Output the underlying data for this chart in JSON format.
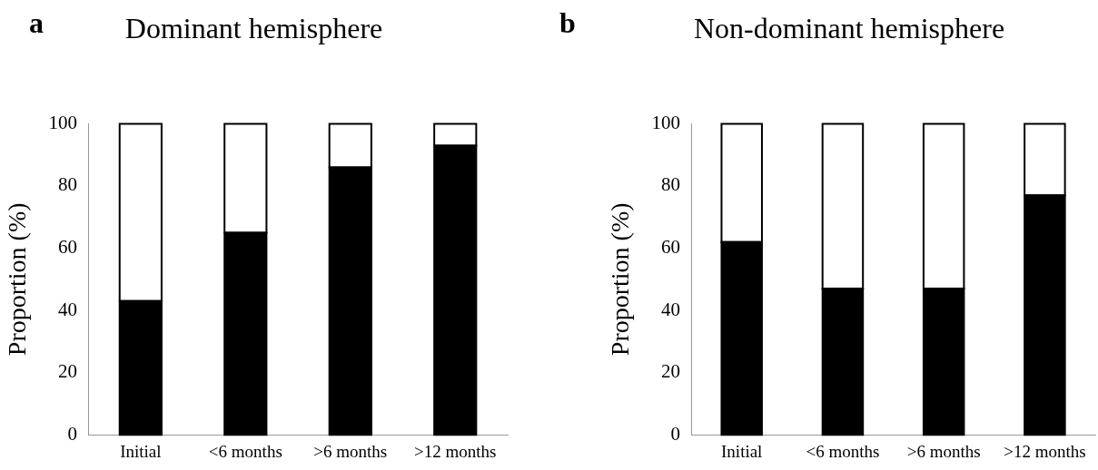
{
  "chart_data": [
    {
      "type": "bar",
      "title": "Dominant hemisphere",
      "annotations": [
        "a"
      ],
      "ylabel": "Proportion (%)",
      "categories": [
        "Initial",
        "<6 months",
        ">6 months",
        ">12 months"
      ],
      "stacked": true,
      "ylim": [
        0,
        100
      ],
      "yticks": [
        0,
        20,
        40,
        60,
        80,
        100
      ],
      "grid": false,
      "legend": false,
      "series": [
        {
          "color": "#000000",
          "values": [
            43,
            65,
            86,
            93
          ]
        },
        {
          "color": "#ffffff",
          "values": [
            57,
            35,
            14,
            7
          ]
        }
      ]
    },
    {
      "type": "bar",
      "title": "Non-dominant hemisphere",
      "annotations": [
        "b"
      ],
      "ylabel": "Proportion (%)",
      "categories": [
        "Initial",
        "<6 months",
        ">6 months",
        ">12 months"
      ],
      "stacked": true,
      "ylim": [
        0,
        100
      ],
      "yticks": [
        0,
        20,
        40,
        60,
        80,
        100
      ],
      "grid": false,
      "legend": false,
      "series": [
        {
          "color": "#000000",
          "values": [
            62,
            47,
            47,
            77
          ]
        },
        {
          "color": "#ffffff",
          "values": [
            38,
            53,
            53,
            23
          ]
        }
      ]
    }
  ]
}
